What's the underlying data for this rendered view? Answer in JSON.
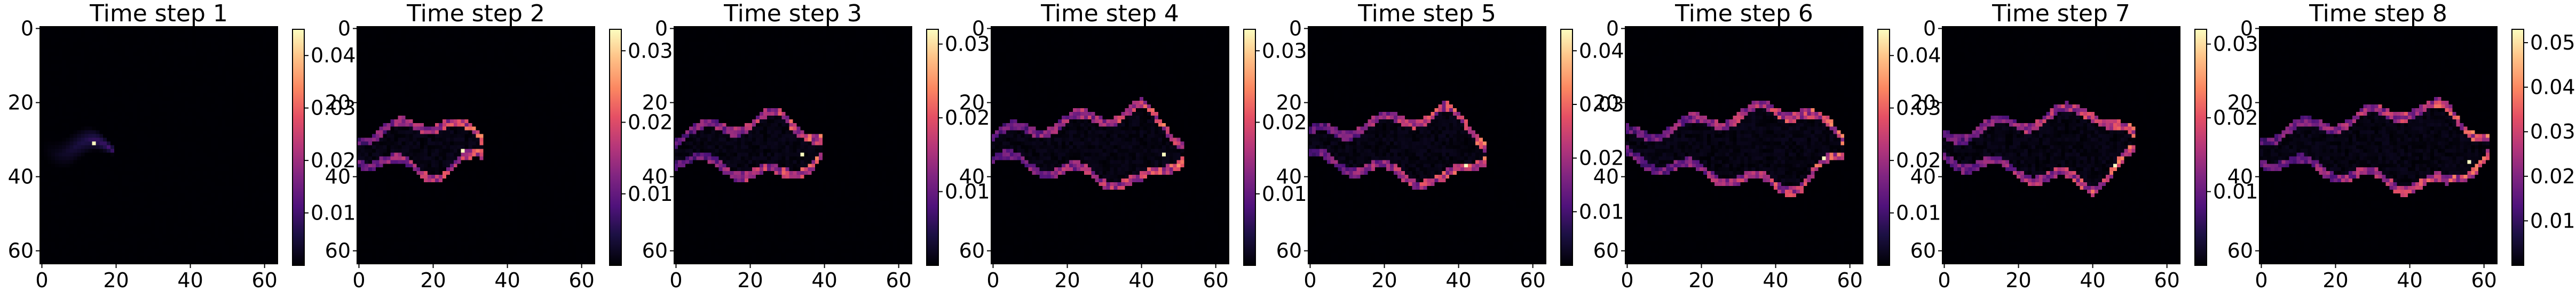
{
  "chart_data": [
    {
      "type": "heatmap",
      "title": "Time step 1",
      "x_ticks": [
        "0",
        "20",
        "40",
        "60"
      ],
      "y_ticks": [
        "0",
        "20",
        "40",
        "60"
      ],
      "colorbar_ticks": [
        "0.01",
        "0.02",
        "0.03",
        "0.04"
      ],
      "colormap": "magma",
      "grid": [
        64,
        64
      ],
      "shape": "filled",
      "vmax": 0.045,
      "peak": 0.042,
      "peak_x": 14,
      "peak_y": 31
    },
    {
      "type": "heatmap",
      "title": "Time step 2",
      "x_ticks": [
        "0",
        "20",
        "40",
        "60"
      ],
      "y_ticks": [
        "0",
        "20",
        "40",
        "60"
      ],
      "colorbar_ticks": [
        "0.01",
        "0.02",
        "0.03"
      ],
      "colormap": "magma",
      "grid": [
        64,
        64
      ],
      "shape": "outline",
      "vmax": 0.033,
      "peak": 0.03,
      "peak_x": 28,
      "peak_y": 33
    },
    {
      "type": "heatmap",
      "title": "Time step 3",
      "x_ticks": [
        "0",
        "20",
        "40",
        "60"
      ],
      "y_ticks": [
        "0",
        "20",
        "40",
        "60"
      ],
      "colorbar_ticks": [
        "0.01",
        "0.02",
        "0.03"
      ],
      "colormap": "magma",
      "grid": [
        64,
        64
      ],
      "shape": "outline",
      "vmax": 0.032,
      "peak": 0.03,
      "peak_x": 34,
      "peak_y": 34
    },
    {
      "type": "heatmap",
      "title": "Time step 4",
      "x_ticks": [
        "0",
        "20",
        "40",
        "60"
      ],
      "y_ticks": [
        "0",
        "20",
        "40",
        "60"
      ],
      "colorbar_ticks": [
        "0.01",
        "0.02",
        "0.03"
      ],
      "colormap": "magma",
      "grid": [
        64,
        64
      ],
      "shape": "outline",
      "vmax": 0.033,
      "peak": 0.032,
      "peak_x": 46,
      "peak_y": 34
    },
    {
      "type": "heatmap",
      "title": "Time step 5",
      "x_ticks": [
        "0",
        "20",
        "40",
        "60"
      ],
      "y_ticks": [
        "0",
        "20",
        "40",
        "60"
      ],
      "colorbar_ticks": [
        "0.01",
        "0.02",
        "0.03",
        "0.04"
      ],
      "colormap": "magma",
      "grid": [
        64,
        64
      ],
      "shape": "outline",
      "vmax": 0.044,
      "peak": 0.042,
      "peak_x": 42,
      "peak_y": 37
    },
    {
      "type": "heatmap",
      "title": "Time step 6",
      "x_ticks": [
        "0",
        "20",
        "40",
        "60"
      ],
      "y_ticks": [
        "0",
        "20",
        "40",
        "60"
      ],
      "colorbar_ticks": [
        "0.01",
        "0.02",
        "0.03",
        "0.04"
      ],
      "colormap": "magma",
      "grid": [
        64,
        64
      ],
      "shape": "outline",
      "vmax": 0.045,
      "peak": 0.043,
      "peak_x": 53,
      "peak_y": 35
    },
    {
      "type": "heatmap",
      "title": "Time step 7",
      "x_ticks": [
        "0",
        "20",
        "40",
        "60"
      ],
      "y_ticks": [
        "0",
        "20",
        "40",
        "60"
      ],
      "colorbar_ticks": [
        "0.01",
        "0.02",
        "0.03"
      ],
      "colormap": "magma",
      "grid": [
        64,
        64
      ],
      "shape": "outline",
      "vmax": 0.032,
      "peak": 0.031,
      "peak_x": 46,
      "peak_y": 37
    },
    {
      "type": "heatmap",
      "title": "Time step 8",
      "x_ticks": [
        "0",
        "20",
        "40",
        "60"
      ],
      "y_ticks": [
        "0",
        "20",
        "40",
        "60"
      ],
      "colorbar_ticks": [
        "0.01",
        "0.02",
        "0.03",
        "0.04",
        "0.05"
      ],
      "colormap": "magma",
      "grid": [
        64,
        64
      ],
      "shape": "outline",
      "vmax": 0.053,
      "peak": 0.05,
      "peak_x": 56,
      "peak_y": 36
    }
  ]
}
